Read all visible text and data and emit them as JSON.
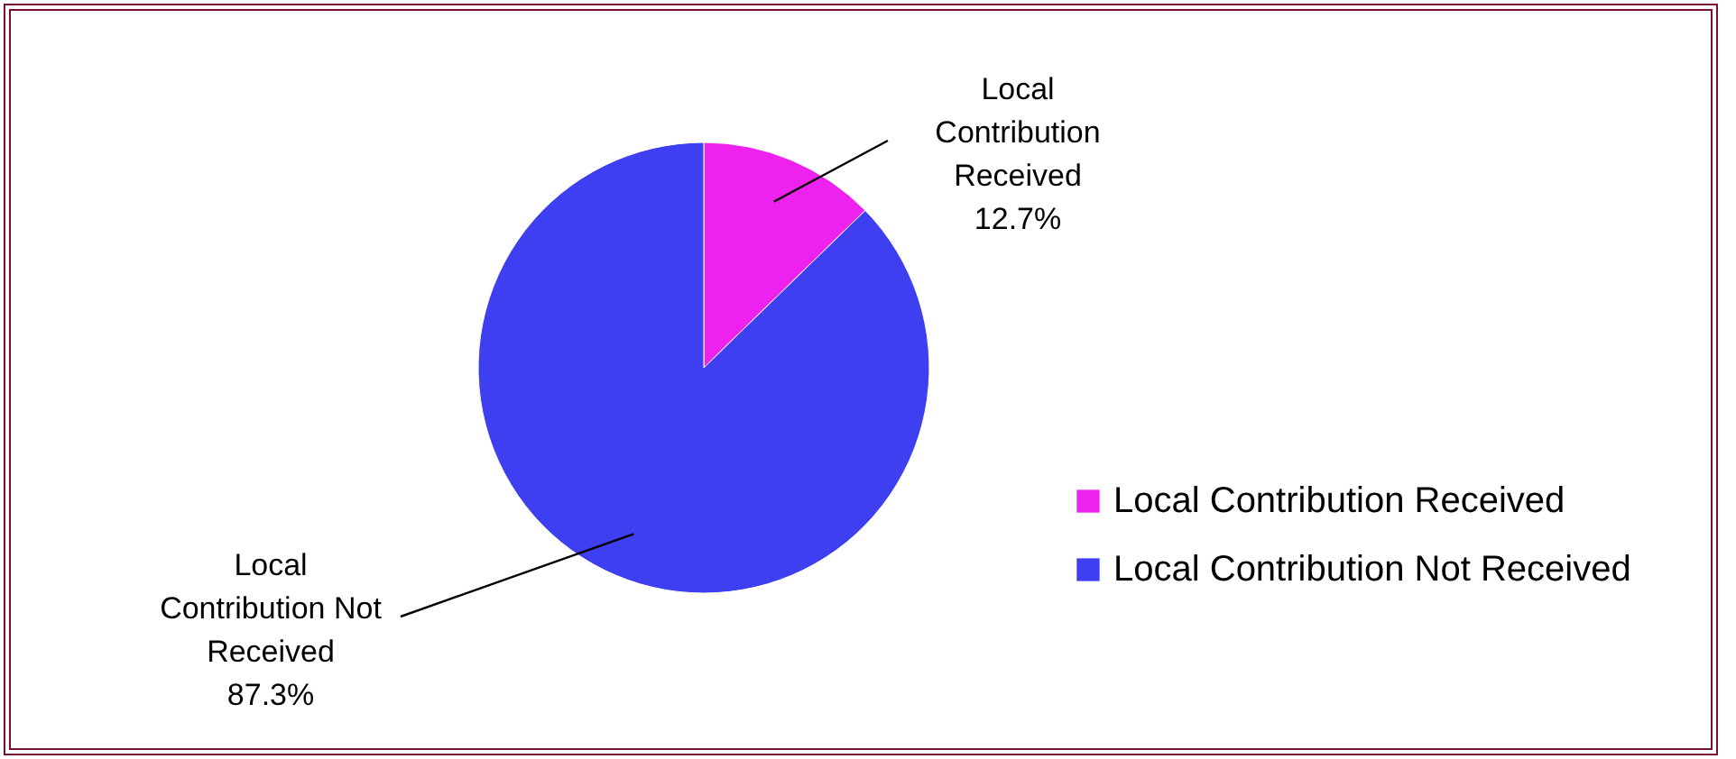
{
  "chart_data": {
    "type": "pie",
    "categories": [
      "Local Contribution Received",
      "Local Contribution Not Received"
    ],
    "values": [
      12.7,
      87.3
    ],
    "colors": [
      "#ee22ee",
      "#3f3ff2"
    ],
    "value_labels": [
      "12.7%",
      "87.3%"
    ],
    "legend": "right"
  }
}
